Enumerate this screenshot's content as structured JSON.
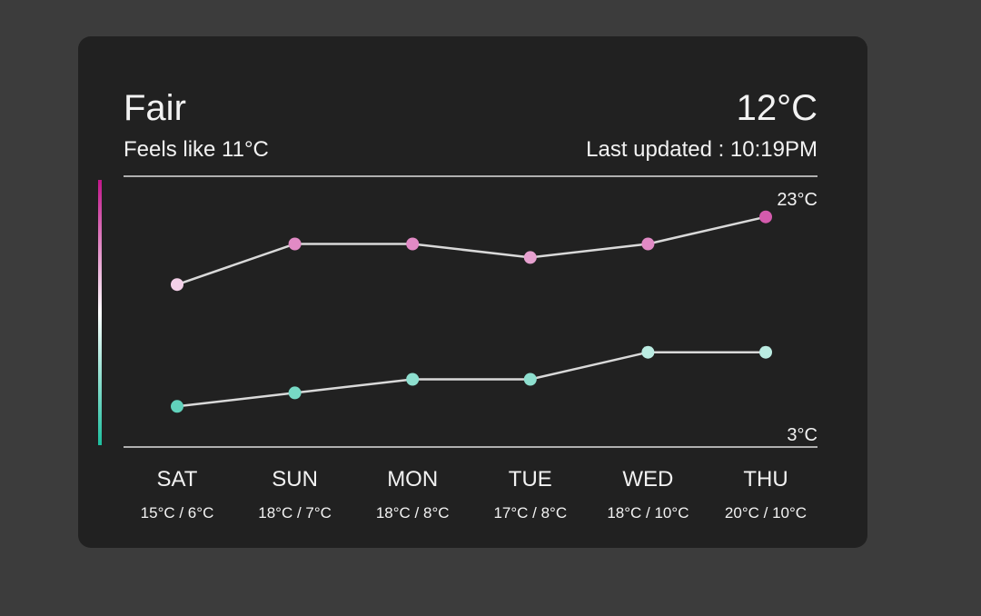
{
  "widget": {
    "condition": "Fair",
    "temperature": "12°C",
    "feels_like": "Feels like 11°C",
    "last_updated": "Last updated : 10:19PM"
  },
  "chart_data": {
    "type": "line",
    "categories": [
      "SAT",
      "SUN",
      "MON",
      "TUE",
      "WED",
      "THU"
    ],
    "category_details": [
      "15°C / 6°C",
      "18°C / 7°C",
      "18°C / 8°C",
      "17°C / 8°C",
      "18°C / 10°C",
      "20°C / 10°C"
    ],
    "series": [
      {
        "values": [
          15,
          18,
          18,
          17,
          18,
          20
        ]
      },
      {
        "values": [
          6,
          7,
          8,
          8,
          10,
          10
        ]
      }
    ],
    "line_color": "#d9d9d9",
    "color_scale": [
      "#1dbf9f",
      "#ffffff",
      "#c2158a"
    ],
    "ylim": [
      3,
      23
    ],
    "yticks": [
      {
        "value": 3,
        "label": "3°C"
      },
      {
        "value": 23,
        "label": "23°C"
      }
    ],
    "grid": true
  }
}
